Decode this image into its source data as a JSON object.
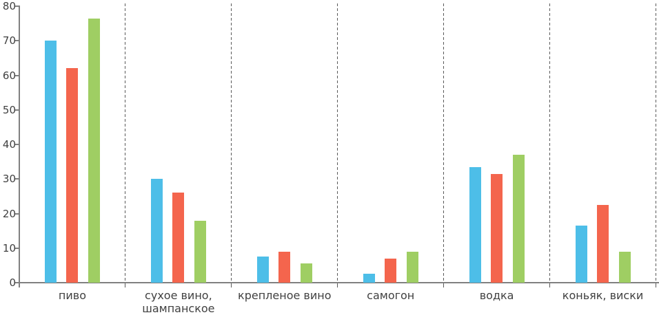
{
  "chart_data": {
    "type": "bar",
    "title": "",
    "xlabel": "",
    "ylabel": "",
    "categories": [
      "пиво",
      "сухое вино,\nшампанское",
      "крепленое вино",
      "самогон",
      "водка",
      "коньяк, виски"
    ],
    "series": [
      {
        "name": "",
        "color": "#4DBEE8",
        "values": [
          70,
          30,
          7.5,
          2.5,
          33.5,
          16.5
        ]
      },
      {
        "name": "",
        "color": "#F4654D",
        "values": [
          62,
          26,
          9,
          7,
          31.5,
          22.5
        ]
      },
      {
        "name": "",
        "color": "#9FCE63",
        "values": [
          76.5,
          18,
          5.5,
          9,
          37,
          9
        ]
      }
    ],
    "ylim": [
      0,
      80
    ],
    "ytick_step": 10,
    "yticklabels": [
      "0",
      "10",
      "20",
      "30",
      "40",
      "50",
      "60",
      "70",
      "80"
    ],
    "legend": "none",
    "grid": "dashed-vertical-category-separators",
    "colors": {
      "axis": "#808080",
      "tick_text": "#404040",
      "separator": "#595959",
      "background": "#FFFFFF"
    }
  }
}
